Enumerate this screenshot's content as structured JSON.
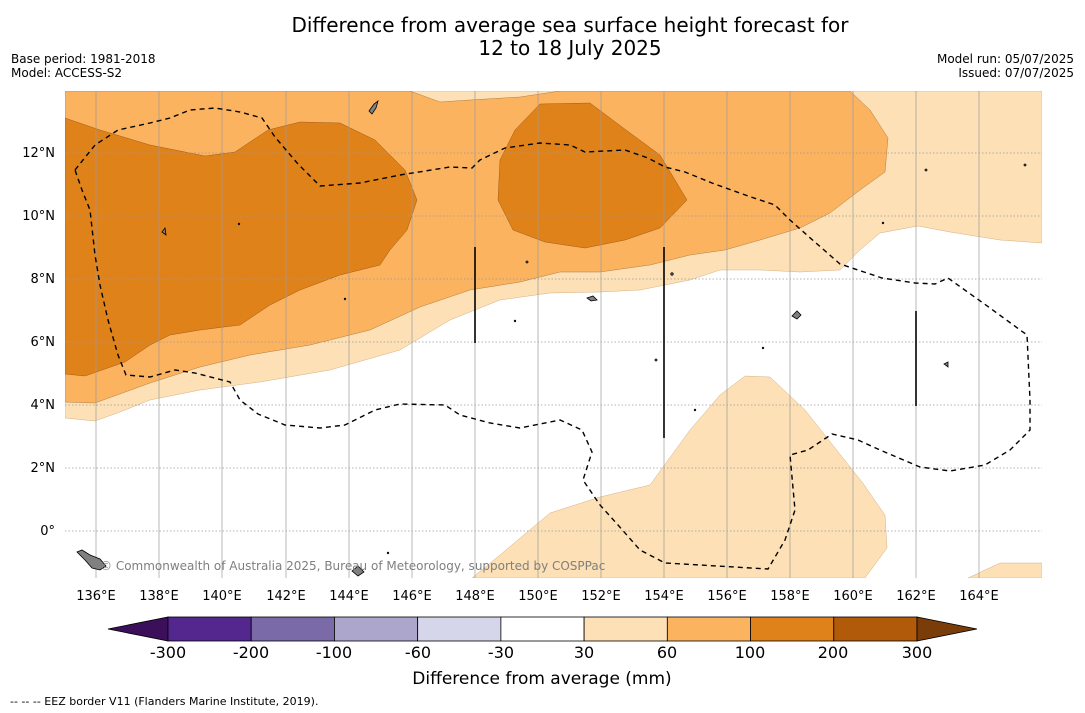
{
  "title_line1": "Difference from average sea surface height forecast for",
  "title_line2": "12 to 18 July 2025",
  "base_period": "Base period: 1981-2018",
  "model": "Model: ACCESS-S2",
  "model_run": "Model run: 05/07/2025",
  "issued": "Issued: 07/07/2025",
  "lat_labels": [
    "12°N",
    "10°N",
    "8°N",
    "6°N",
    "4°N",
    "2°N",
    "0°"
  ],
  "lon_labels": [
    "136°E",
    "138°E",
    "140°E",
    "142°E",
    "144°E",
    "146°E",
    "148°E",
    "150°E",
    "152°E",
    "154°E",
    "156°E",
    "158°E",
    "160°E",
    "162°E",
    "164°E"
  ],
  "credit": "© Commonwealth of Australia 2025, Bureau of Meteorology, supported by COSPPac",
  "colorbar": {
    "title": "Difference from average (mm)",
    "labels": [
      "-300",
      "-200",
      "-100",
      "-60",
      "-30",
      "30",
      "60",
      "100",
      "200",
      "300"
    ],
    "colors": [
      "#3b0f5a",
      "#54278f",
      "#7b6aa8",
      "#ada6cc",
      "#d6d6ea",
      "#ffffff",
      "#fde0b5",
      "#fbb360",
      "#e0821a",
      "#b05a0a",
      "#7a3c08"
    ]
  },
  "footer": "-- -- -- EEZ border V11 (Flanders Marine Institute, 2019).",
  "colors": {
    "level_30_60": "#fde0b5",
    "level_60_100": "#fbb360",
    "level_100_200": "#e0821a",
    "land": "#808080"
  }
}
